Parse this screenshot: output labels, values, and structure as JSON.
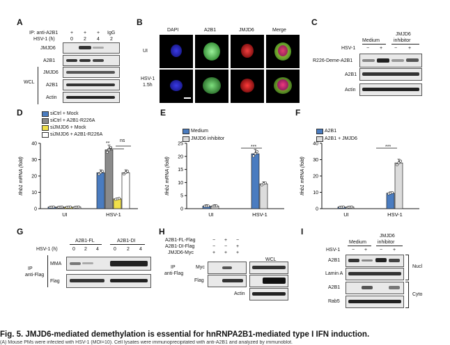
{
  "figure": {
    "caption": "Fig. 5. JMJD6-mediated demethylation is essential for hnRNPA2B1-mediated type I IFN induction.",
    "caption_sub": "(A) Mouse PMs were infected with HSV-1 (MOI=10). Cell lysates were immunoprecipitated with anti-A2B1 and analyzed by immunoblot."
  },
  "panelA": {
    "label": "A",
    "ip_label": "IP: anti-A2B1",
    "hsv_label": "HSV-1 (h)",
    "plus_row": [
      "+",
      "+",
      "+",
      "IgG"
    ],
    "hours": [
      "0",
      "2",
      "4",
      "2"
    ],
    "ip_rows": [
      "JMJD6",
      "A2B1"
    ],
    "wcl_label": "WCL",
    "wcl_rows": [
      "JMJD6",
      "A2B1",
      "Actin"
    ]
  },
  "panelB": {
    "label": "B",
    "columns": [
      "DAPI",
      "A2B1",
      "JMJD6",
      "Merge"
    ],
    "rows": [
      "UI",
      "HSV-1\n1.5h"
    ],
    "row1": "UI",
    "row2a": "HSV-1",
    "row2b": "1.5h"
  },
  "panelC": {
    "label": "C",
    "col_medium": "Medium",
    "col_inhib1": "JMJD6",
    "col_inhib2": "inhibitor",
    "hsv_label": "HSV-1",
    "signs": [
      "−",
      "+",
      "−",
      "+"
    ],
    "rows": [
      "R226-Deme-A2B1",
      "A2B1",
      "Actin"
    ]
  },
  "panelD": {
    "label": "D",
    "legend": [
      "siCtrl + Mock",
      "siCtrl + A2B1-R226A",
      "siJMJD6 + Mock",
      "siJMJD6 + A2B1-R226A"
    ],
    "sig1": "**",
    "sig2": "ns",
    "sig3": "*"
  },
  "panelE": {
    "label": "E",
    "legend": [
      "Medium",
      "JMJD6 inhibitor"
    ],
    "sig": "***"
  },
  "panelF": {
    "label": "F",
    "legend": [
      "A2B1",
      "A2B1 + JMJD6"
    ],
    "sig": "***"
  },
  "panelG": {
    "label": "G",
    "col1": "A2B1-FL",
    "col2": "A2B1-DI",
    "hsv_label": "HSV-1 (h)",
    "hours": [
      "0",
      "2",
      "4",
      "0",
      "2",
      "4"
    ],
    "ip1": "IP",
    "ip2": "anti-Flag",
    "rows": [
      "MMA",
      "Flag"
    ]
  },
  "panelH": {
    "label": "H",
    "rows_top": [
      "A2B1-FL-Flag",
      "A2B1-DI-Flag",
      "JMJD6-Myc"
    ],
    "signs": [
      [
        "−",
        "+",
        "−"
      ],
      [
        "−",
        "−",
        "+"
      ],
      [
        "+",
        "+",
        "+"
      ]
    ],
    "ip1": "IP",
    "ip2": "anti-Flag",
    "wcl": "WCL",
    "rows": [
      "Myc",
      "Flag",
      "Actin"
    ]
  },
  "panelI": {
    "label": "I",
    "col_medium": "Medium",
    "col_inhib1": "JMJD6",
    "col_inhib2": "inhibitor",
    "hsv_label": "HSV-1",
    "signs": [
      "−",
      "+",
      "−",
      "+"
    ],
    "nucl_rows": [
      "A2B1",
      "Lamin A"
    ],
    "cyto_rows": [
      "A2B1",
      "Rab5"
    ],
    "nucl_label": "Nucl",
    "cyto_label": "Cyto"
  },
  "chart_data": [
    {
      "panel": "D",
      "type": "bar",
      "ylabel": "Ifnb1 mRNA (fold)",
      "ylim": [
        0,
        40
      ],
      "yticks": [
        0,
        10,
        20,
        30,
        40
      ],
      "categories": [
        "UI",
        "HSV-1"
      ],
      "series": [
        {
          "name": "siCtrl + Mock",
          "color": "#4a7cc0",
          "values": [
            1,
            22
          ]
        },
        {
          "name": "siCtrl + A2B1-R226A",
          "color": "#8a8a8a",
          "values": [
            1,
            36
          ]
        },
        {
          "name": "siJMJD6 + Mock",
          "color": "#f1e04a",
          "values": [
            1,
            6
          ]
        },
        {
          "name": "siJMJD6 + A2B1-R226A",
          "color": "#ffffff",
          "values": [
            1,
            22
          ]
        }
      ]
    },
    {
      "panel": "E",
      "type": "bar",
      "ylabel": "Ifnb1 mRNA (fold)",
      "ylim": [
        0,
        25
      ],
      "yticks": [
        0,
        5,
        10,
        15,
        20,
        25
      ],
      "categories": [
        "UI",
        "HSV-1"
      ],
      "series": [
        {
          "name": "Medium",
          "color": "#4a7cc0",
          "values": [
            1,
            21
          ]
        },
        {
          "name": "JMJD6 inhibitor",
          "color": "#dcdcdc",
          "values": [
            1,
            9.5
          ]
        }
      ]
    },
    {
      "panel": "F",
      "type": "bar",
      "ylabel": "Ifnb1 mRNA (fold)",
      "ylim": [
        0,
        40
      ],
      "yticks": [
        0,
        10,
        20,
        30,
        40
      ],
      "categories": [
        "UI",
        "HSV-1"
      ],
      "series": [
        {
          "name": "A2B1",
          "color": "#4a7cc0",
          "values": [
            1,
            9.5
          ]
        },
        {
          "name": "A2B1 + JMJD6",
          "color": "#dcdcdc",
          "values": [
            1,
            28
          ]
        }
      ]
    }
  ]
}
